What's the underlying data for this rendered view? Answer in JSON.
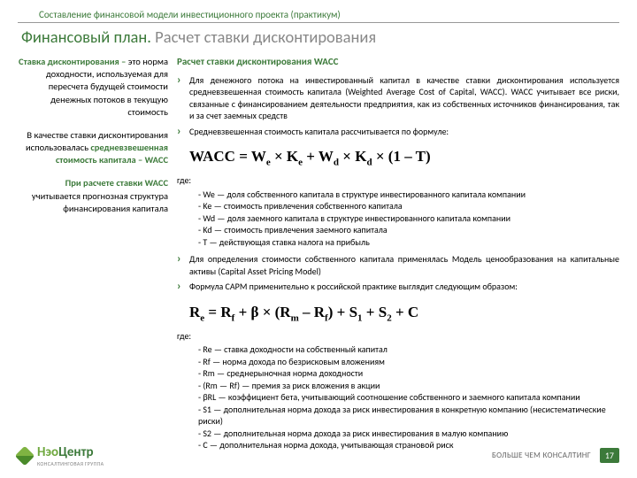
{
  "header": {
    "sup": "Составление финансовой модели инвестиционного проекта (практикум)",
    "title_a": "Финансовый план. ",
    "title_b": "Расчет ставки дисконтирования"
  },
  "left": {
    "p1_head": "Ставка дисконтирования – ",
    "p1_body": "это норма доходности, используемая для пересчета будущей стоимости денежных потоков в текущую стоимость",
    "p2_a": "В качестве ставки дисконтирования использовалась ",
    "p2_b": "средневзвешенная стоимость капитала – WACC",
    "p3_a": "При расчете ставки WACC ",
    "p3_b": "учитывается прогнозная структура финансирования капитала"
  },
  "right": {
    "subtitle": "Расчет ставки дисконтирования WACC",
    "b1": "Для денежного потока на инвестированный капитал в качестве ставки дисконтирования используется средневзвешенная стоимость капитала (Weighted Average Cost of Capital, WACC). WACC учитывает все риски, связанные с финансированием деятельности предприятия, как из собственных источников финансирования, так и за счет заемных средств",
    "b2": "Средневзвешенная стоимость капитала рассчитывается по формуле:",
    "where": "где:",
    "d1": [
      "We — доля собственного капитала в структуре инвестированного капитала компании",
      "Ke — стоимость привлечения собственного капитала",
      "Wd — доля заемного капитала в структуре инвестированного капитала компании",
      "Kd — стоимость привлечения заемного капитала",
      "T — действующая ставка налога на прибыль"
    ],
    "b3": "Для определения стоимости собственного капитала применялась Модель ценообразования на капитальные активы (Capital Asset Pricing Model)",
    "b4": "Формула CAPM применительно к российской практике выглядит следующим образом:",
    "d2": [
      "Re — ставка доходности на собственный капитал",
      "Rf — норма дохода по безрисковым вложениям",
      "Rm — среднерыночная норма доходности",
      "(Rm — Rf) — премия за риск вложения в акции",
      "βRL — коэффициент бета, учитывающий соотношение собственного и заемного капитала компании",
      "S1 — дополнительная норма дохода за риск инвестирования в конкретную компанию (несистематические риски)",
      "S2 — дополнительная норма дохода за риск инвестирования в малую компанию",
      "C — дополнительная норма дохода, учитывающая страновой риск"
    ]
  },
  "footer": {
    "logo_a": "Нэо",
    "logo_b": "Центр",
    "logo_sub": "КОНСАЛТИНГОВАЯ ГРУППА",
    "tagline": "БОЛЬШЕ ЧЕМ КОНСАЛТИНГ",
    "page": "17"
  }
}
